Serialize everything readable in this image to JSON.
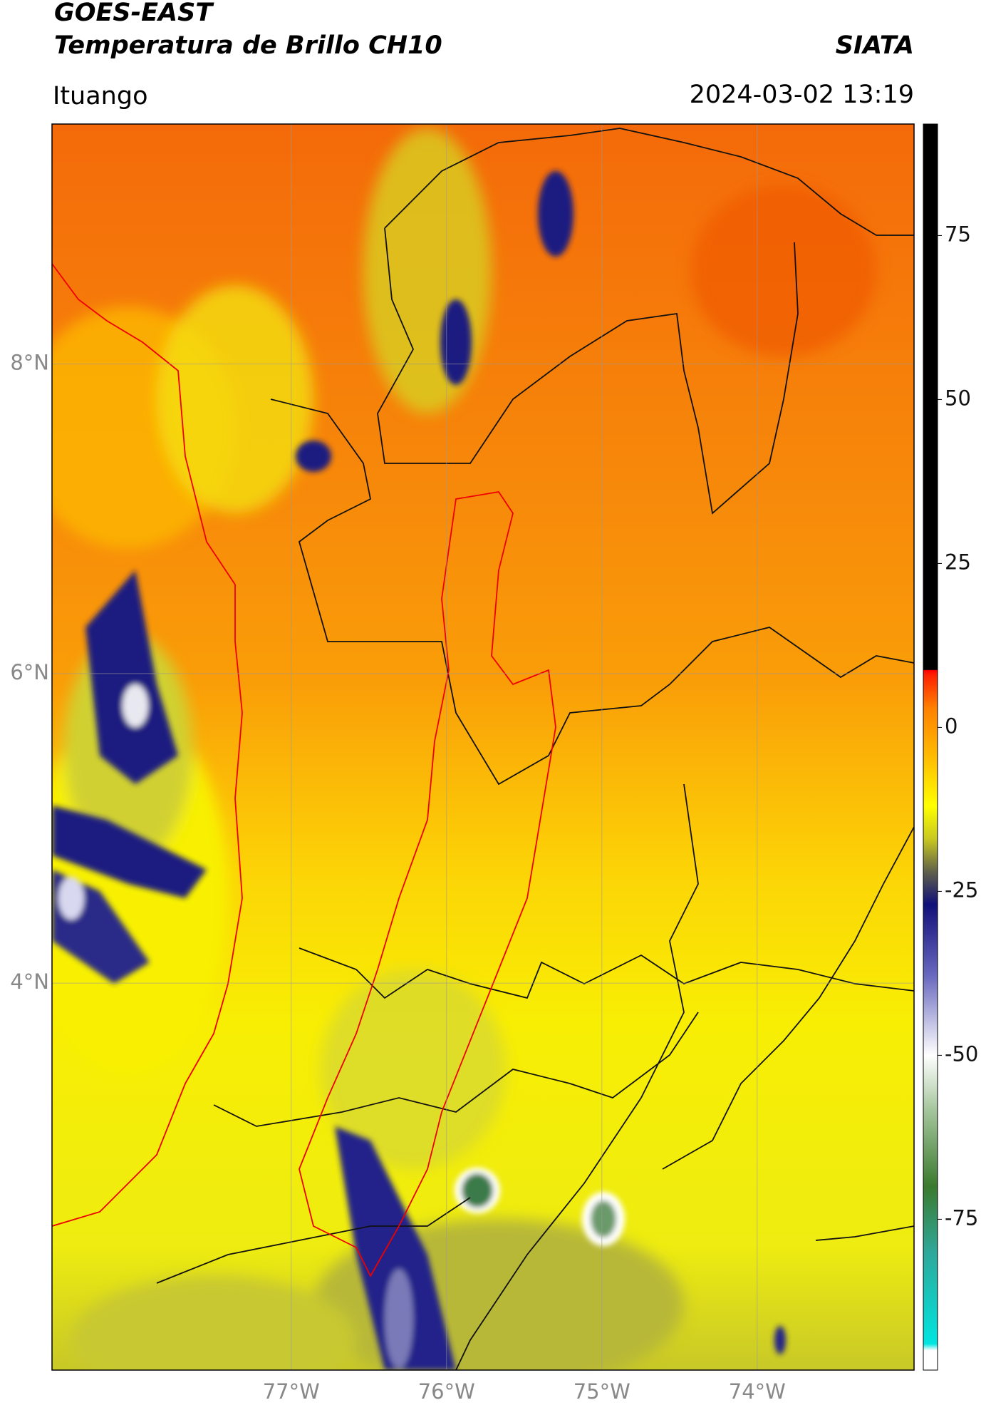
{
  "header": {
    "title": "GOES-EAST",
    "subtitle": "Temperatura de Brillo CH10",
    "source": "SIATA",
    "location": "Ituango",
    "datetime": "2024-03-02 13:19"
  },
  "map": {
    "lonlim": [
      -78.54,
      -72.99
    ],
    "latlim": [
      1.5,
      9.55
    ],
    "lat_ticks": [
      {
        "value": 8,
        "label": "8°N"
      },
      {
        "value": 6,
        "label": "6°N"
      },
      {
        "value": 4,
        "label": "4°N"
      }
    ],
    "lon_ticks": [
      {
        "value": -77,
        "label": "77°W"
      },
      {
        "value": -76,
        "label": "76°W"
      },
      {
        "value": -75,
        "label": "75°W"
      },
      {
        "value": -74,
        "label": "74°W"
      }
    ],
    "grid": true
  },
  "colorbar": {
    "lim": [
      -98,
      92
    ],
    "ticks": [
      75,
      50,
      25,
      0,
      -25,
      -50,
      -75
    ],
    "colormap": [
      {
        "value": -98,
        "color": "#ffffff"
      },
      {
        "value": -95,
        "color": "#ffffff"
      },
      {
        "value": -94,
        "color": "#00e5e0"
      },
      {
        "value": -80,
        "color": "#2fa89a"
      },
      {
        "value": -70,
        "color": "#3a7a2e"
      },
      {
        "value": -58,
        "color": "#a8c8a0"
      },
      {
        "value": -50,
        "color": "#ffffff"
      },
      {
        "value": -38,
        "color": "#6a6ac0"
      },
      {
        "value": -27,
        "color": "#10107a"
      },
      {
        "value": -22,
        "color": "#60604a"
      },
      {
        "value": -17,
        "color": "#c8c820"
      },
      {
        "value": -12,
        "color": "#ffff00"
      },
      {
        "value": -5,
        "color": "#ffc000"
      },
      {
        "value": 3,
        "color": "#ff8000"
      },
      {
        "value": 8,
        "color": "#ff2000"
      },
      {
        "value": 8.7,
        "color": "#ff0000"
      },
      {
        "value": 8.8,
        "color": "#000000"
      },
      {
        "value": 92,
        "color": "#000000"
      }
    ]
  }
}
